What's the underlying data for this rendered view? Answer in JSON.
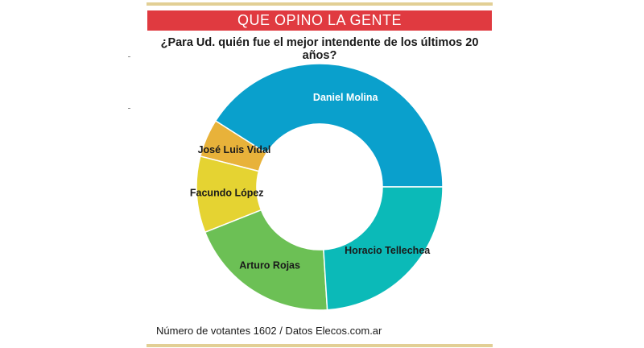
{
  "header": {
    "banner": "QUE OPINO LA GENTE",
    "question": "¿Para Ud. quién fue el mejor intendente de los últimos 20 años?"
  },
  "footnote": "Número de votantes 1602 / Datos Elecos.com.ar",
  "colors": {
    "banner": "#e03a40",
    "rule": "#e2cf95"
  },
  "chart_data": {
    "type": "pie",
    "donut": true,
    "categories": [
      "Daniel Molina",
      "José Luis Vidal",
      "Facundo López",
      "Arturo Rojas",
      "Horacio Tellechea"
    ],
    "values": [
      41,
      5,
      10,
      20,
      24
    ],
    "colors": [
      "#0aa0cc",
      "#e8b23a",
      "#e5d332",
      "#6cc055",
      "#0bbab8"
    ],
    "title": "QUE OPINO LA GENTE",
    "subtitle": "¿Para Ud. quién fue el mejor intendente de los últimos 20 años?"
  }
}
